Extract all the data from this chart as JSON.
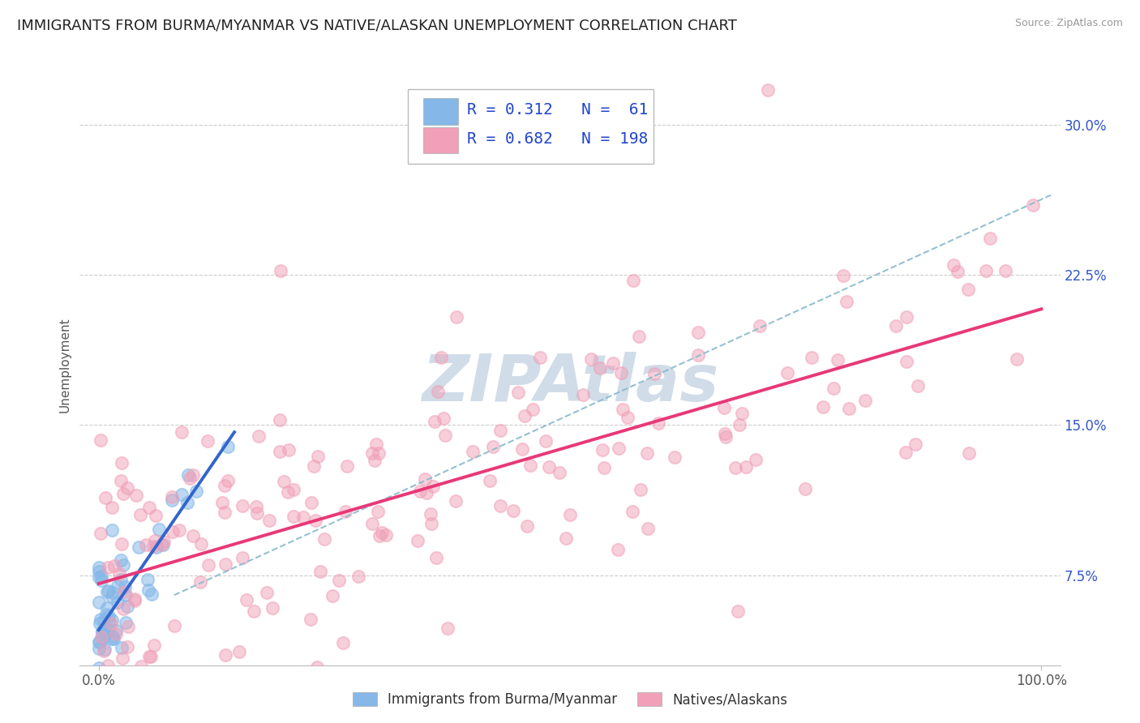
{
  "title": "IMMIGRANTS FROM BURMA/MYANMAR VS NATIVE/ALASKAN UNEMPLOYMENT CORRELATION CHART",
  "source": "Source: ZipAtlas.com",
  "ylabel": "Unemployment",
  "xlim": [
    -0.02,
    1.02
  ],
  "ylim": [
    0.03,
    0.33
  ],
  "yticks": [
    0.075,
    0.15,
    0.225,
    0.3
  ],
  "ytick_labels": [
    "7.5%",
    "15.0%",
    "22.5%",
    "30.0%"
  ],
  "xtick_labels": [
    "0.0%",
    "100.0%"
  ],
  "blue_R": 0.312,
  "blue_N": 61,
  "pink_R": 0.682,
  "pink_N": 198,
  "blue_color": "#85b8e8",
  "pink_color": "#f0a0b8",
  "blue_line_color": "#3366cc",
  "pink_line_color": "#e83878",
  "dashed_line_color": "#88bbcc",
  "watermark": "ZIPAtlas",
  "watermark_color": "#d0dce8",
  "legend_label_blue": "Immigrants from Burma/Myanmar",
  "legend_label_pink": "Natives/Alaskans",
  "background_color": "#ffffff",
  "grid_color": "#cccccc",
  "title_fontsize": 13,
  "axis_label_fontsize": 11,
  "tick_fontsize": 12,
  "legend_fontsize": 13,
  "ytick_color": "#3355cc",
  "xtick_color": "#555555"
}
